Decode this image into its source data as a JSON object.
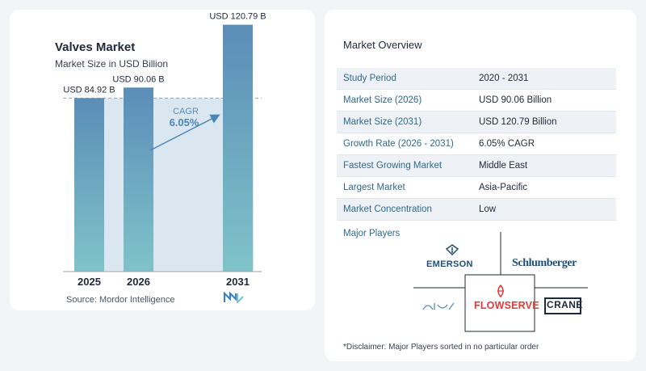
{
  "chart_data": {
    "type": "bar",
    "title": "Valves Market",
    "subtitle": "Market Size in USD Billion",
    "categories": [
      "2025",
      "2026",
      "2031"
    ],
    "values": [
      84.92,
      90.06,
      120.79
    ],
    "value_labels": [
      "USD 84.92 B",
      "USD 90.06 B",
      "USD 120.79 B"
    ],
    "ylim": [
      0,
      125
    ],
    "cagr_label": "CAGR",
    "cagr_value": "6.05%",
    "colors": {
      "bar_top": "#5b8db8",
      "bar_bottom": "#7fc3c9",
      "band": "#dbe7f0",
      "accent": "#4a86b8"
    }
  },
  "source": "Source:  Mordor Intelligence",
  "overview": {
    "title": "Market Overview",
    "rows": [
      {
        "label": "Study Period",
        "value": "2020 - 2031"
      },
      {
        "label": "Market Size (2026)",
        "value": "USD 90.06 Billion"
      },
      {
        "label": "Market Size (2031)",
        "value": "USD 120.79 Billion"
      },
      {
        "label": "Growth Rate (2026 - 2031)",
        "value": "6.05% CAGR"
      },
      {
        "label": "Fastest Growing Market",
        "value": "Middle East"
      },
      {
        "label": "Largest Market",
        "value": "Asia-Pacific"
      },
      {
        "label": "Market Concentration",
        "value": "Low"
      }
    ]
  },
  "players": {
    "title": "Major Players",
    "logos": [
      "EMERSON",
      "Schlumberger",
      "Alfa Laval",
      "FLOWSERVE",
      "CRANE"
    ],
    "logo_text": {
      "emerson": "EMERSON",
      "slb": "Schlumberger",
      "flowserve": "FLOWSERVE",
      "crane": "CRANE"
    }
  },
  "disclaimer": "*Disclaimer: Major Players sorted in no particular order"
}
